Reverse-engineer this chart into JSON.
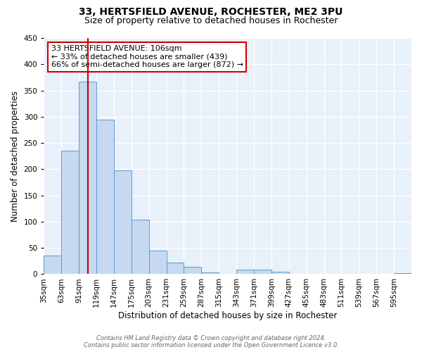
{
  "title": "33, HERTSFIELD AVENUE, ROCHESTER, ME2 3PU",
  "subtitle": "Size of property relative to detached houses in Rochester",
  "xlabel": "Distribution of detached houses by size in Rochester",
  "ylabel": "Number of detached properties",
  "bar_color": "#c6d9f0",
  "bar_edge_color": "#5b9bd5",
  "background_color": "#e8f0fa",
  "grid_color": "#ffffff",
  "red_line_x": 106,
  "bin_edges": [
    35,
    63,
    91,
    119,
    147,
    175,
    203,
    231,
    259,
    287,
    315,
    343,
    371,
    399,
    427,
    455,
    483,
    511,
    539,
    567,
    595
  ],
  "bin_labels": [
    "35sqm",
    "63sqm",
    "91sqm",
    "119sqm",
    "147sqm",
    "175sqm",
    "203sqm",
    "231sqm",
    "259sqm",
    "287sqm",
    "315sqm",
    "343sqm",
    "371sqm",
    "399sqm",
    "427sqm",
    "455sqm",
    "483sqm",
    "511sqm",
    "539sqm",
    "567sqm",
    "595sqm"
  ],
  "bar_heights": [
    35,
    235,
    367,
    295,
    198,
    104,
    45,
    22,
    14,
    3,
    0,
    9,
    9,
    4,
    0,
    0,
    0,
    0,
    0,
    0,
    2
  ],
  "ylim": [
    0,
    450
  ],
  "yticks": [
    0,
    50,
    100,
    150,
    200,
    250,
    300,
    350,
    400,
    450
  ],
  "annotation_title": "33 HERTSFIELD AVENUE: 106sqm",
  "annotation_line1": "← 33% of detached houses are smaller (439)",
  "annotation_line2": "66% of semi-detached houses are larger (872) →",
  "annotation_box_color": "#ffffff",
  "annotation_box_edge": "#cc0000",
  "footer_line1": "Contains HM Land Registry data © Crown copyright and database right 2024.",
  "footer_line2": "Contains public sector information licensed under the Open Government Licence v3.0.",
  "title_fontsize": 10,
  "subtitle_fontsize": 9,
  "axis_label_fontsize": 8.5,
  "tick_fontsize": 7.5,
  "annotation_fontsize": 8,
  "footer_fontsize": 6
}
